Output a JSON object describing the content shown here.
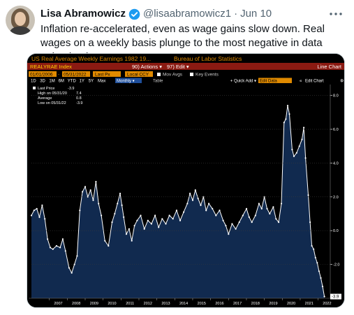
{
  "tweet": {
    "author_name": "Lisa Abramowicz",
    "handle": "@lisaabramowicz1",
    "separator": "·",
    "date": "Jun 10",
    "text": "Inflation re-accelerated, even as wage gains slow down. Real wages on a weekly basis plunge to the most negative in data going back to 2006."
  },
  "terminal": {
    "title": "US Real Average Weekly Earnings 1982 19...",
    "source": "Bureau of Labor Statistics",
    "ticker": "REALYRAE Index",
    "actions_menu": "90) Actions ▾",
    "edit_menu": "97) Edit ▾",
    "chart_label": "Line Chart",
    "start_date": "01/01/2006",
    "end_date": "05/31/2022",
    "price_field": "Last Px",
    "currency": "Local CCY",
    "mov_avgs": "Mov Avgs",
    "key_events": "Key Events",
    "ranges": [
      "1D",
      "3D",
      "1M",
      "6M",
      "YTD",
      "1Y",
      "5Y",
      "Max"
    ],
    "frequency": "Monthly ▾",
    "table_label": "Table",
    "quick_add": "+ Quick Add ▾",
    "edit_data": "Edit Data",
    "edit_chart": "Edit Chart",
    "tools": [
      "Track",
      "Annotate",
      "News",
      "Zoom"
    ],
    "legend": {
      "last_price": "Last Price",
      "last_price_value": "-3.9",
      "high": "High on 05/31/20",
      "high_value": "7.4",
      "average": "Average",
      "average_value": "0.8",
      "low": "Low on 05/31/22",
      "low_value": "-3.9"
    },
    "last_value_tag": "-3.9",
    "colors": {
      "background": "#000000",
      "plot_fill": "#112a4f",
      "line": "#ffffff",
      "header_red": "#8b1a12",
      "accent_orange": "#e08a00"
    }
  },
  "chart_data": {
    "type": "area",
    "x_ticks": [
      "2007",
      "2008",
      "2009",
      "2010",
      "2011",
      "2012",
      "2013",
      "2014",
      "2015",
      "2016",
      "2017",
      "2018",
      "2019",
      "2020",
      "2021",
      "2022"
    ],
    "y_ticks": [
      "8.0",
      "6.0",
      "4.0",
      "2.0",
      "0.0",
      "-2.0"
    ],
    "ylim": [
      -4,
      8.4
    ],
    "series": [
      {
        "name": "Last Price",
        "points": [
          [
            2006.0,
            0.9
          ],
          [
            2006.15,
            1.2
          ],
          [
            2006.3,
            1.3
          ],
          [
            2006.45,
            0.8
          ],
          [
            2006.6,
            1.5
          ],
          [
            2006.75,
            0.7
          ],
          [
            2006.9,
            -0.5
          ],
          [
            2007.05,
            -1.0
          ],
          [
            2007.2,
            -1.1
          ],
          [
            2007.4,
            -0.9
          ],
          [
            2007.6,
            -1.0
          ],
          [
            2007.75,
            -0.5
          ],
          [
            2007.9,
            -1.2
          ],
          [
            2008.1,
            -2.2
          ],
          [
            2008.25,
            -2.5
          ],
          [
            2008.4,
            -2.0
          ],
          [
            2008.55,
            -1.5
          ],
          [
            2008.7,
            1.2
          ],
          [
            2008.85,
            2.3
          ],
          [
            2009.0,
            2.6
          ],
          [
            2009.15,
            2.0
          ],
          [
            2009.3,
            2.4
          ],
          [
            2009.45,
            1.8
          ],
          [
            2009.6,
            2.9
          ],
          [
            2009.75,
            1.6
          ],
          [
            2009.9,
            0.9
          ],
          [
            2010.1,
            -0.6
          ],
          [
            2010.3,
            -0.9
          ],
          [
            2010.5,
            0.5
          ],
          [
            2010.65,
            1.0
          ],
          [
            2010.8,
            1.6
          ],
          [
            2010.95,
            2.2
          ],
          [
            2011.05,
            1.5
          ],
          [
            2011.15,
            0.8
          ],
          [
            2011.3,
            -0.2
          ],
          [
            2011.45,
            0.1
          ],
          [
            2011.6,
            -0.6
          ],
          [
            2011.75,
            0.3
          ],
          [
            2011.9,
            0.6
          ],
          [
            2012.1,
            0.9
          ],
          [
            2012.3,
            0.1
          ],
          [
            2012.5,
            0.6
          ],
          [
            2012.7,
            0.4
          ],
          [
            2012.9,
            0.9
          ],
          [
            2013.1,
            0.2
          ],
          [
            2013.3,
            0.7
          ],
          [
            2013.5,
            0.4
          ],
          [
            2013.7,
            0.9
          ],
          [
            2013.9,
            0.7
          ],
          [
            2014.1,
            1.2
          ],
          [
            2014.3,
            0.6
          ],
          [
            2014.5,
            1.1
          ],
          [
            2014.7,
            1.6
          ],
          [
            2014.85,
            2.2
          ],
          [
            2015.0,
            1.8
          ],
          [
            2015.15,
            2.4
          ],
          [
            2015.3,
            1.9
          ],
          [
            2015.45,
            1.5
          ],
          [
            2015.6,
            2.0
          ],
          [
            2015.75,
            1.2
          ],
          [
            2015.9,
            1.6
          ],
          [
            2016.1,
            1.3
          ],
          [
            2016.3,
            0.9
          ],
          [
            2016.5,
            1.2
          ],
          [
            2016.7,
            0.6
          ],
          [
            2016.85,
            0.3
          ],
          [
            2017.0,
            -0.2
          ],
          [
            2017.2,
            0.4
          ],
          [
            2017.4,
            0.1
          ],
          [
            2017.6,
            0.5
          ],
          [
            2017.8,
            0.9
          ],
          [
            2018.0,
            1.3
          ],
          [
            2018.15,
            0.8
          ],
          [
            2018.3,
            0.5
          ],
          [
            2018.5,
            0.9
          ],
          [
            2018.7,
            1.6
          ],
          [
            2018.85,
            1.3
          ],
          [
            2019.0,
            2.0
          ],
          [
            2019.15,
            1.3
          ],
          [
            2019.3,
            1.0
          ],
          [
            2019.5,
            1.4
          ],
          [
            2019.65,
            0.7
          ],
          [
            2019.8,
            0.5
          ],
          [
            2019.95,
            1.6
          ],
          [
            2020.1,
            6.4
          ],
          [
            2020.2,
            6.6
          ],
          [
            2020.3,
            7.4
          ],
          [
            2020.4,
            6.9
          ],
          [
            2020.55,
            4.8
          ],
          [
            2020.65,
            4.4
          ],
          [
            2020.8,
            4.6
          ],
          [
            2020.95,
            5.0
          ],
          [
            2021.1,
            5.4
          ],
          [
            2021.2,
            6.1
          ],
          [
            2021.3,
            4.3
          ],
          [
            2021.45,
            2.1
          ],
          [
            2021.55,
            0.5
          ],
          [
            2021.65,
            -0.9
          ],
          [
            2021.75,
            -1.1
          ],
          [
            2021.85,
            -1.6
          ],
          [
            2021.95,
            -1.9
          ],
          [
            2022.05,
            -2.4
          ],
          [
            2022.15,
            -2.8
          ],
          [
            2022.25,
            -3.3
          ],
          [
            2022.35,
            -3.9
          ]
        ]
      }
    ]
  }
}
